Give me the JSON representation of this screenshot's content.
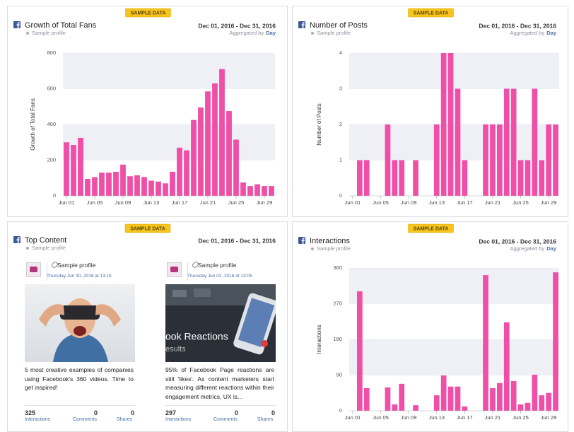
{
  "chart_data": [
    {
      "type": "bar",
      "title": "Growth of Total Fans",
      "subtitle": "Sample profile",
      "badge": "SAMPLE DATA",
      "date_range": "Dec 01, 2016 - Dec 31, 2016",
      "aggregated_label": "Aggregated by",
      "aggregated_value": "Day",
      "y_label": "Growth of Total Fans",
      "color": "#ef4fa6",
      "grid": true,
      "categories": [
        "Jun 01",
        null,
        null,
        null,
        "Jun 05",
        null,
        null,
        null,
        "Jun 09",
        null,
        null,
        null,
        "Jun 13",
        null,
        null,
        null,
        "Jun 17",
        null,
        null,
        null,
        "Jun 21",
        null,
        null,
        null,
        "Jun 25",
        null,
        null,
        null,
        "Jun 29",
        null
      ],
      "values": [
        300,
        285,
        325,
        95,
        105,
        130,
        130,
        135,
        175,
        110,
        115,
        105,
        85,
        80,
        70,
        135,
        270,
        255,
        425,
        495,
        585,
        630,
        710,
        475,
        315,
        75,
        55,
        65,
        55,
        55
      ],
      "ylim": [
        0,
        800
      ],
      "yticks": [
        0,
        200,
        400,
        600,
        800
      ]
    },
    {
      "type": "bar",
      "title": "Number of Posts",
      "subtitle": "Sample profile",
      "badge": "SAMPLE DATA",
      "date_range": "Dec 01, 2016 - Dec 31, 2016",
      "aggregated_label": "Aggregated by",
      "aggregated_value": "Day",
      "y_label": "Number of Posts",
      "color": "#ef4fa6",
      "grid": true,
      "categories": [
        "Jun 01",
        null,
        null,
        null,
        "Jun 05",
        null,
        null,
        null,
        "Jun 09",
        null,
        null,
        null,
        "Jun 13",
        null,
        null,
        null,
        "Jun 17",
        null,
        null,
        null,
        "Jun 21",
        null,
        null,
        null,
        "Jun 25",
        null,
        null,
        null,
        "Jun 29",
        null
      ],
      "values": [
        0,
        1,
        1,
        0,
        0,
        2,
        1,
        1,
        0,
        1,
        0,
        0,
        2,
        4,
        4,
        3,
        1,
        0,
        0,
        2,
        2,
        2,
        3,
        3,
        1,
        1,
        3,
        1,
        2,
        2
      ],
      "ylim": [
        0,
        4
      ],
      "yticks": [
        0,
        1,
        2,
        3,
        4
      ]
    },
    {
      "type": "bar",
      "title": "Interactions",
      "subtitle": "Sample profile",
      "badge": "SAMPLE DATA",
      "date_range": "Dec 01, 2016 - Dec 31, 2016",
      "aggregated_label": "Aggregated by",
      "aggregated_value": "Day",
      "y_label": "Interactions",
      "color": "#ef4fa6",
      "grid": true,
      "categories": [
        "Jun 01",
        null,
        null,
        null,
        "Jun 05",
        null,
        null,
        null,
        "Jun 09",
        null,
        null,
        null,
        "Jun 13",
        null,
        null,
        null,
        "Jun 17",
        null,
        null,
        null,
        "Jun 21",
        null,
        null,
        null,
        "Jun 25",
        null,
        null,
        null,
        "Jun 29",
        null
      ],
      "values": [
        0,
        301,
        57,
        0,
        0,
        59,
        16,
        68,
        0,
        14,
        0,
        0,
        39,
        89,
        61,
        61,
        11,
        0,
        0,
        342,
        57,
        70,
        223,
        75,
        16,
        20,
        91,
        39,
        45,
        349
      ],
      "ylim": [
        0,
        360
      ],
      "yticks": [
        0,
        90,
        180,
        270,
        360
      ]
    }
  ],
  "top_content": {
    "title": "Top Content",
    "subtitle": "Sample profile",
    "badge": "SAMPLE DATA",
    "date_range": "Dec 01, 2016 - Dec 31, 2016",
    "posts": [
      {
        "profile": "Sample profile",
        "date": "Thursday Jun 30, 2016 at 13:15",
        "text": "5 most creative examples of companies using Facebook's 360 videos. Time to get inspired!",
        "image_text": [],
        "interactions": 325,
        "interactions_label": "Interactions",
        "comments": 0,
        "comments_label": "Comments",
        "shares": 0,
        "shares_label": "Shares"
      },
      {
        "profile": "Sample profile",
        "date": "Thursday Jun 02, 2016 at 13:05",
        "text": "95% of Facebook Page reactions are still 'likes'. As content marketers start measuring different reactions within their engagement metrics, UX is...",
        "image_text": [
          "ook Reactions",
          "esults"
        ],
        "interactions": 297,
        "interactions_label": "Interactions",
        "comments": 0,
        "comments_label": "Comments",
        "shares": 0,
        "shares_label": "Shares"
      }
    ]
  }
}
